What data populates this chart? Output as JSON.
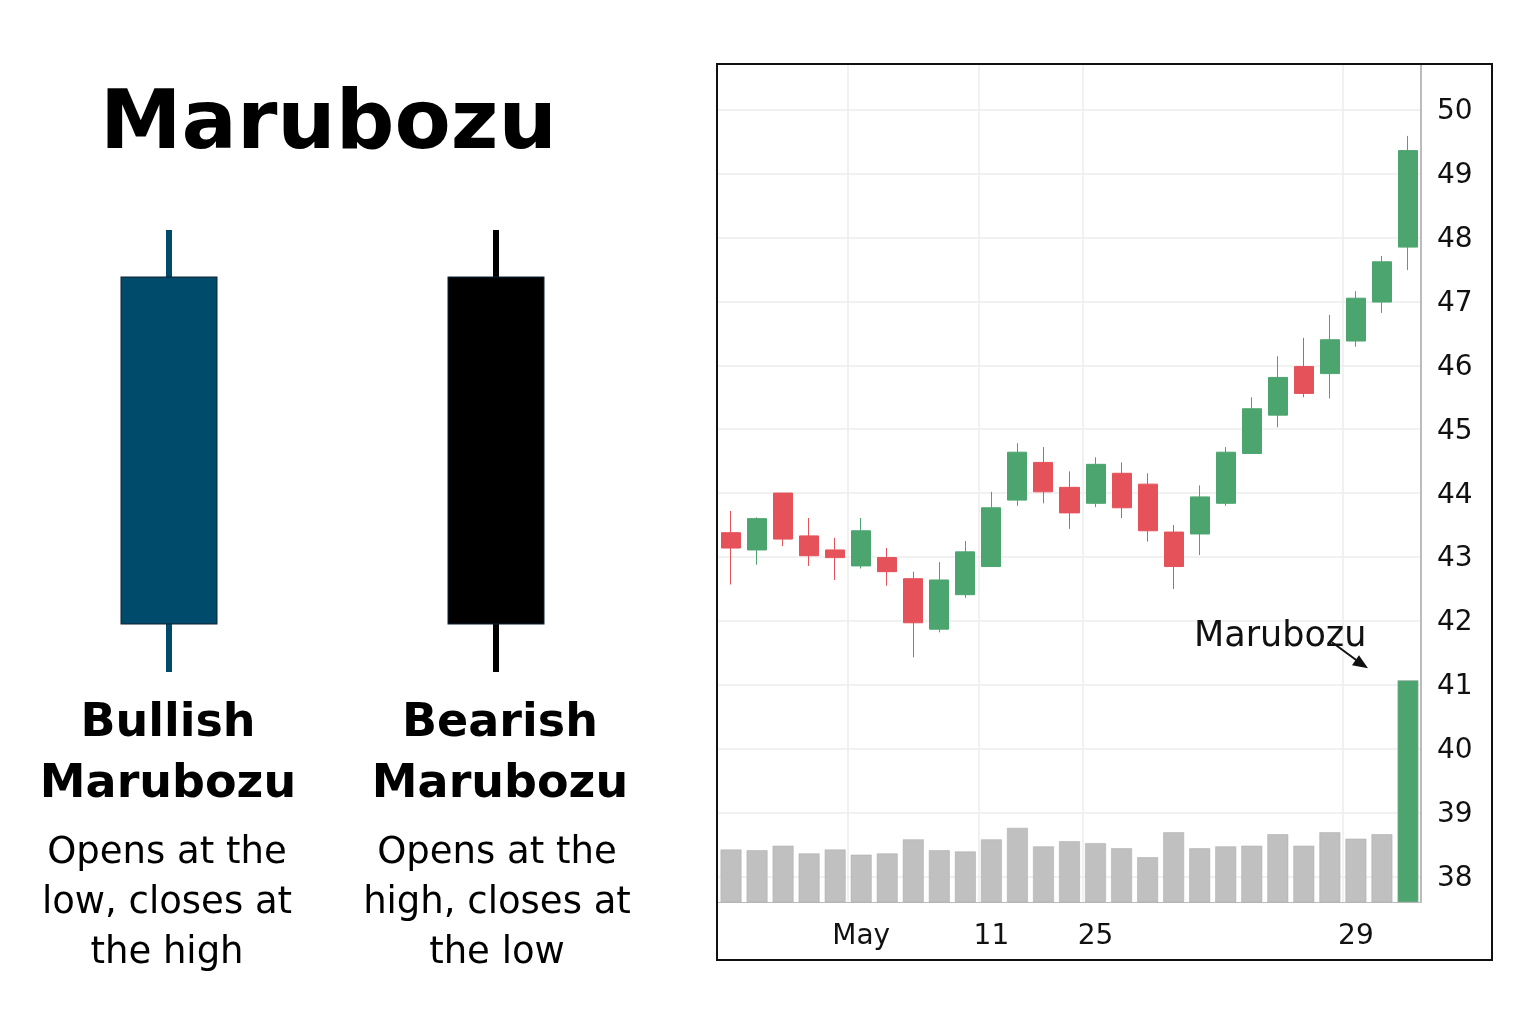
{
  "chart_data": [
    {
      "type": "other",
      "title": "Marubozu",
      "annotations": [
        "Bullish Marubozu",
        "Opens at the low, closes at the high",
        "Bearish Marubozu",
        "Opens at the high, closes at the low"
      ]
    },
    {
      "type": "candlestick",
      "categories": [
        null,
        null,
        null,
        null,
        null,
        "May",
        null,
        null,
        null,
        null,
        "11",
        null,
        null,
        null,
        "25",
        null,
        null,
        null,
        null,
        null,
        null,
        null,
        null,
        null,
        "29",
        null,
        null
      ],
      "series": [
        {
          "type": "candlestick",
          "ohlc": [
            [
              43.38,
              43.72,
              42.57,
              43.14
            ],
            [
              43.11,
              43.62,
              42.88,
              43.6
            ],
            [
              44.0,
              44.0,
              43.17,
              43.28
            ],
            [
              43.33,
              43.61,
              42.86,
              43.02
            ],
            [
              43.11,
              43.3,
              42.64,
              42.99
            ],
            [
              42.86,
              43.61,
              42.82,
              43.41
            ],
            [
              42.99,
              43.14,
              42.55,
              42.77
            ],
            [
              42.66,
              42.77,
              41.43,
              41.97
            ],
            [
              41.87,
              42.92,
              41.82,
              42.64
            ],
            [
              42.41,
              43.25,
              42.36,
              43.08
            ],
            [
              42.85,
              44.02,
              42.85,
              43.77
            ],
            [
              43.89,
              44.78,
              43.8,
              44.64
            ],
            [
              44.48,
              44.72,
              43.84,
              44.02
            ],
            [
              44.09,
              44.34,
              43.44,
              43.69
            ],
            [
              43.84,
              44.56,
              43.78,
              44.45
            ],
            [
              44.31,
              44.48,
              43.61,
              43.77
            ],
            [
              44.14,
              44.31,
              43.24,
              43.41
            ],
            [
              43.39,
              43.5,
              42.5,
              42.85
            ],
            [
              43.36,
              44.12,
              43.03,
              43.94
            ],
            [
              43.84,
              44.72,
              43.8,
              44.64
            ],
            [
              44.62,
              45.5,
              44.62,
              45.32
            ],
            [
              45.22,
              46.14,
              45.03,
              45.81
            ],
            [
              45.98,
              46.43,
              45.5,
              45.56
            ],
            [
              45.87,
              46.79,
              45.48,
              46.4
            ],
            [
              46.38,
              47.16,
              46.29,
              47.05
            ],
            [
              46.99,
              47.71,
              46.82,
              47.62
            ],
            [
              47.85,
              49.59,
              47.49,
              49.36
            ]
          ],
          "colors": [
            "#e5525a",
            "#4ca56f",
            "#e5525a",
            "#e5525a",
            "#e5525a",
            "#4ca56f",
            "#e5525a",
            "#e5525a",
            "#4ca56f",
            "#4ca56f",
            "#4ca56f",
            "#4ca56f",
            "#e5525a",
            "#e5525a",
            "#4ca56f",
            "#e5525a",
            "#e5525a",
            "#e5525a",
            "#4ca56f",
            "#4ca56f",
            "#4ca56f",
            "#4ca56f",
            "#e5525a",
            "#4ca56f",
            "#4ca56f",
            "#4ca56f",
            "#4ca56f"
          ]
        },
        {
          "type": "bar",
          "values": [
            38.42,
            38.41,
            38.48,
            38.36,
            38.42,
            38.34,
            38.36,
            38.58,
            38.41,
            38.39,
            38.58,
            38.76,
            38.47,
            38.55,
            38.52,
            38.44,
            38.3,
            38.69,
            38.44,
            38.47,
            38.48,
            38.66,
            38.48,
            38.69,
            38.59,
            38.66,
            41.07
          ],
          "colors": [
            "#c0c0c0",
            "#c0c0c0",
            "#c0c0c0",
            "#c0c0c0",
            "#c0c0c0",
            "#c0c0c0",
            "#c0c0c0",
            "#c0c0c0",
            "#c0c0c0",
            "#c0c0c0",
            "#c0c0c0",
            "#c0c0c0",
            "#c0c0c0",
            "#c0c0c0",
            "#c0c0c0",
            "#c0c0c0",
            "#c0c0c0",
            "#c0c0c0",
            "#c0c0c0",
            "#c0c0c0",
            "#c0c0c0",
            "#c0c0c0",
            "#c0c0c0",
            "#c0c0c0",
            "#c0c0c0",
            "#c0c0c0",
            "#4ca56f"
          ]
        }
      ],
      "ylim": [
        37.6,
        50.7
      ],
      "yticks": [
        38,
        39,
        40,
        41,
        42,
        43,
        44,
        45,
        46,
        47,
        48,
        49,
        50
      ],
      "grid": true,
      "annotations": [
        "Marubozu"
      ]
    }
  ]
}
